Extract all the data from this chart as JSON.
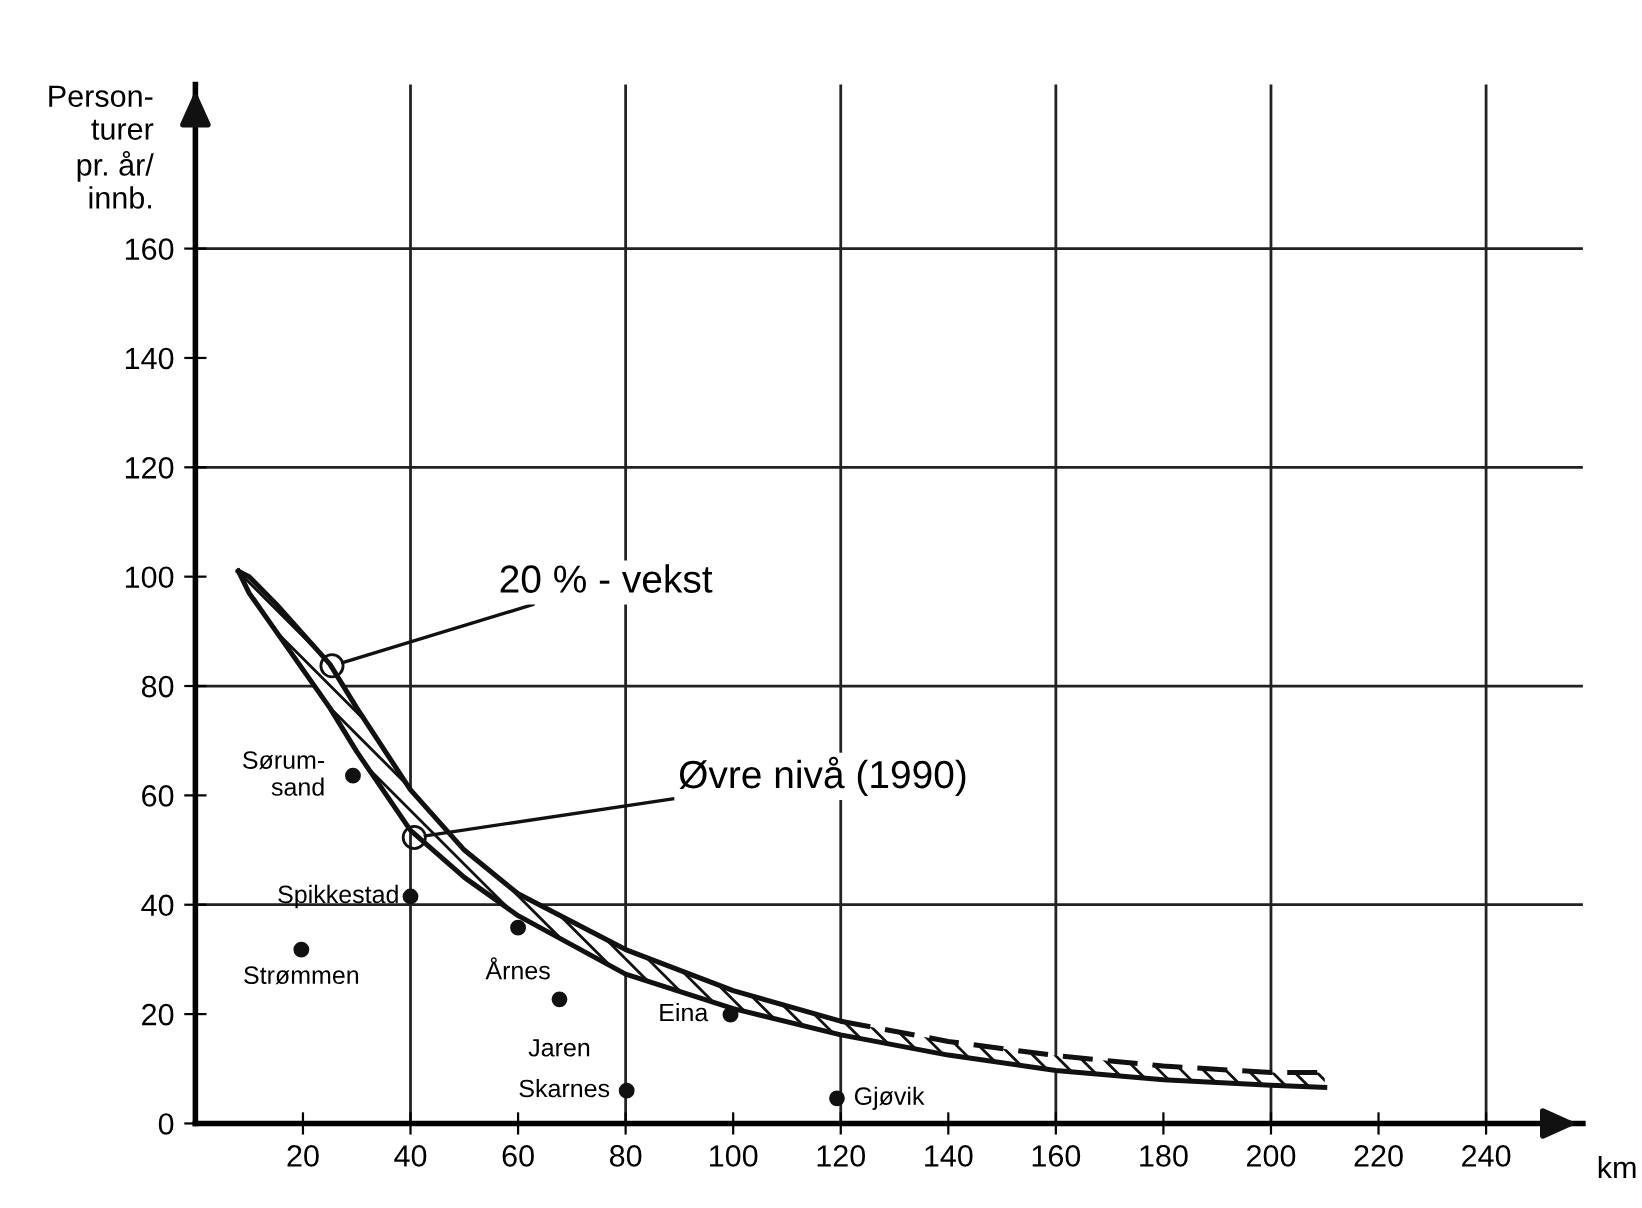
{
  "chart_data": {
    "type": "line",
    "xlabel": "km",
    "ylabel": "Person-\nturer\npr. år/\ninnb.",
    "xlim": [
      0,
      258
    ],
    "ylim": [
      0,
      190
    ],
    "xticks": [
      20,
      40,
      60,
      80,
      100,
      120,
      140,
      160,
      180,
      200,
      220,
      240
    ],
    "yticks": [
      0,
      20,
      40,
      60,
      80,
      100,
      120,
      140,
      160
    ],
    "grid": true,
    "series": [
      {
        "color": "#111111",
        "line_style": "solid",
        "marker": "none",
        "x": [
          8,
          10,
          15,
          25,
          30,
          40,
          50,
          60,
          80,
          100,
          120,
          140,
          160,
          180,
          200,
          210
        ],
        "values": [
          101,
          97,
          90,
          76,
          68,
          53.6,
          45,
          38,
          27.3,
          21,
          16.2,
          12.5,
          9.7,
          8,
          7,
          6.6
        ],
        "lower": [
          101,
          97,
          90,
          76,
          68,
          53.6,
          45,
          38,
          27.3,
          21,
          16.2,
          12.5,
          9.7,
          8,
          7,
          6.6
        ],
        "upper": [
          101,
          100,
          95,
          84,
          76,
          61,
          50,
          42,
          31.8,
          24.3,
          18.7,
          15,
          12.4,
          10.5,
          9.3,
          9.3
        ]
      },
      {
        "color": "#111111",
        "line_style": "solid",
        "marker": "none",
        "x": [
          8,
          10,
          15,
          25,
          30,
          40,
          50,
          60,
          80,
          100,
          120
        ],
        "values": [
          101,
          100,
          95,
          84,
          76,
          61,
          50,
          42,
          31.8,
          24.3,
          18.7
        ]
      },
      {
        "color": "#111111",
        "line_style": "dashed",
        "marker": "none",
        "x": [
          120,
          140,
          160,
          180,
          200,
          210
        ],
        "values": [
          18.7,
          15,
          12.4,
          10.5,
          9.3,
          9.3
        ]
      },
      {
        "type": "scatter",
        "color": "#111111",
        "marker": "circle",
        "x": [
          29.3,
          40,
          19.7,
          60,
          67.7,
          80.2,
          99.5,
          119.3
        ],
        "values": [
          63.6,
          41.5,
          31.8,
          35.8,
          22.7,
          6,
          19.9,
          4.6
        ]
      }
    ],
    "annotations": [
      {
        "text": "20 % - vekst",
        "x": 25.4,
        "y": 83.7
      },
      {
        "text": "Øvre nivå (1990)",
        "x": 40.7,
        "y": 52.3
      },
      {
        "text": "Sørum-\nsand",
        "x": 29.3,
        "y": 63.6
      },
      {
        "text": "Spikkestad",
        "x": 40,
        "y": 41.5
      },
      {
        "text": "Strømmen",
        "x": 19.7,
        "y": 31.8
      },
      {
        "text": "Årnes",
        "x": 60,
        "y": 35.8
      },
      {
        "text": "Jaren",
        "x": 67.7,
        "y": 22.7
      },
      {
        "text": "Skarnes",
        "x": 80.2,
        "y": 6
      },
      {
        "text": "Eina",
        "x": 99.5,
        "y": 19.9
      },
      {
        "text": "Gjøvik",
        "x": 119.3,
        "y": 4.6
      }
    ]
  }
}
